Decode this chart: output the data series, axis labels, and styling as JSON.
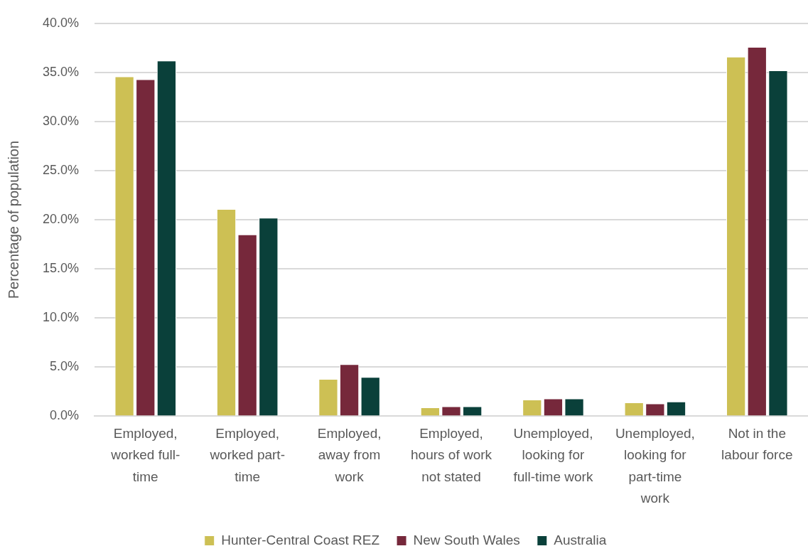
{
  "chart_data": {
    "type": "bar",
    "ylabel": "Percentage of population",
    "categories": [
      "Employed, worked full-time",
      "Employed, worked part-time",
      "Employed, away from work",
      "Employed, hours of work not stated",
      "Unemployed, looking for full-time work",
      "Unemployed, looking for part-time work",
      "Not in the labour force"
    ],
    "series": [
      {
        "name": "Hunter-Central Coast REZ",
        "color": "#cdc054",
        "values": [
          34.6,
          21.1,
          3.8,
          0.9,
          1.7,
          1.4,
          36.6
        ]
      },
      {
        "name": "New South Wales",
        "color": "#76283b",
        "values": [
          34.3,
          18.5,
          5.3,
          1.0,
          1.8,
          1.3,
          37.6
        ]
      },
      {
        "name": "Australia",
        "color": "#0a403a",
        "values": [
          36.2,
          20.2,
          4.0,
          1.0,
          1.8,
          1.5,
          35.2
        ]
      }
    ],
    "ylim": [
      0,
      40
    ],
    "yticks": [
      {
        "value": 0,
        "label": "0.0%"
      },
      {
        "value": 5,
        "label": "5.0%"
      },
      {
        "value": 10,
        "label": "10.0%"
      },
      {
        "value": 15,
        "label": "15.0%"
      },
      {
        "value": 20,
        "label": "20.0%"
      },
      {
        "value": 25,
        "label": "25.0%"
      },
      {
        "value": 30,
        "label": "30.0%"
      },
      {
        "value": 35,
        "label": "35.0%"
      },
      {
        "value": 40,
        "label": "40.0%"
      }
    ],
    "grid": "y",
    "legend": "bottom"
  }
}
